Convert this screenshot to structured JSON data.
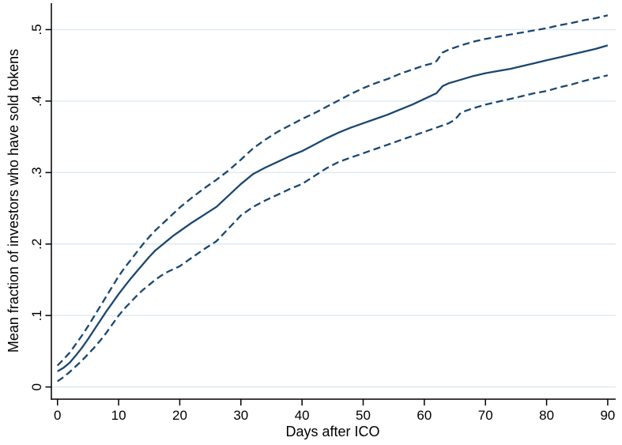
{
  "chart_data": {
    "type": "line",
    "title": "",
    "xlabel": "Days after ICO",
    "ylabel": "Mean fraction of investors who have sold tokens",
    "legend": "none",
    "grid": "horizontal",
    "x_range": [
      -1,
      91.3
    ],
    "y_range": [
      -0.017,
      0.537
    ],
    "x_ticks": [
      {
        "v": 0,
        "label": "0"
      },
      {
        "v": 10,
        "label": "10"
      },
      {
        "v": 20,
        "label": "20"
      },
      {
        "v": 30,
        "label": "30"
      },
      {
        "v": 40,
        "label": "40"
      },
      {
        "v": 50,
        "label": "50"
      },
      {
        "v": 60,
        "label": "60"
      },
      {
        "v": 70,
        "label": "70"
      },
      {
        "v": 80,
        "label": "80"
      },
      {
        "v": 90,
        "label": "90"
      }
    ],
    "y_ticks": [
      {
        "v": 0.0,
        "label": "0"
      },
      {
        "v": 0.1,
        "label": ".1"
      },
      {
        "v": 0.2,
        "label": ".2"
      },
      {
        "v": 0.3,
        "label": ".3"
      },
      {
        "v": 0.4,
        "label": ".4"
      },
      {
        "v": 0.5,
        "label": ".5"
      }
    ],
    "colors": {
      "line": "#1a476f",
      "grid": "#dce9f1",
      "axis": "#000000",
      "background": "#ffffff"
    },
    "series": [
      {
        "name": "mean_fraction_sold",
        "style": "solid",
        "points": [
          [
            0,
            0.022
          ],
          [
            1,
            0.027
          ],
          [
            2,
            0.034
          ],
          [
            3,
            0.044
          ],
          [
            4,
            0.055
          ],
          [
            5,
            0.067
          ],
          [
            6,
            0.08
          ],
          [
            7,
            0.093
          ],
          [
            8,
            0.106
          ],
          [
            9,
            0.118
          ],
          [
            10,
            0.13
          ],
          [
            11,
            0.141
          ],
          [
            12,
            0.152
          ],
          [
            13,
            0.162
          ],
          [
            14,
            0.172
          ],
          [
            15,
            0.182
          ],
          [
            16,
            0.191
          ],
          [
            17,
            0.198
          ],
          [
            18,
            0.205
          ],
          [
            19,
            0.212
          ],
          [
            20,
            0.218
          ],
          [
            22,
            0.23
          ],
          [
            24,
            0.241
          ],
          [
            26,
            0.252
          ],
          [
            28,
            0.268
          ],
          [
            30,
            0.284
          ],
          [
            32,
            0.298
          ],
          [
            34,
            0.307
          ],
          [
            36,
            0.315
          ],
          [
            38,
            0.323
          ],
          [
            40,
            0.33
          ],
          [
            42,
            0.339
          ],
          [
            44,
            0.348
          ],
          [
            46,
            0.356
          ],
          [
            48,
            0.363
          ],
          [
            50,
            0.369
          ],
          [
            52,
            0.375
          ],
          [
            54,
            0.381
          ],
          [
            56,
            0.388
          ],
          [
            58,
            0.395
          ],
          [
            60,
            0.403
          ],
          [
            61,
            0.407
          ],
          [
            62,
            0.411
          ],
          [
            63,
            0.421
          ],
          [
            64,
            0.425
          ],
          [
            66,
            0.43
          ],
          [
            68,
            0.435
          ],
          [
            70,
            0.439
          ],
          [
            72,
            0.442
          ],
          [
            74,
            0.445
          ],
          [
            76,
            0.449
          ],
          [
            78,
            0.453
          ],
          [
            80,
            0.457
          ],
          [
            82,
            0.461
          ],
          [
            84,
            0.465
          ],
          [
            86,
            0.469
          ],
          [
            88,
            0.473
          ],
          [
            90,
            0.478
          ]
        ]
      },
      {
        "name": "ci_upper",
        "style": "dashed",
        "points": [
          [
            0,
            0.03
          ],
          [
            1,
            0.039
          ],
          [
            2,
            0.048
          ],
          [
            3,
            0.06
          ],
          [
            4,
            0.072
          ],
          [
            5,
            0.085
          ],
          [
            6,
            0.099
          ],
          [
            7,
            0.113
          ],
          [
            8,
            0.127
          ],
          [
            9,
            0.141
          ],
          [
            10,
            0.155
          ],
          [
            11,
            0.167
          ],
          [
            12,
            0.178
          ],
          [
            13,
            0.189
          ],
          [
            14,
            0.2
          ],
          [
            15,
            0.21
          ],
          [
            16,
            0.219
          ],
          [
            17,
            0.227
          ],
          [
            18,
            0.235
          ],
          [
            19,
            0.243
          ],
          [
            20,
            0.251
          ],
          [
            22,
            0.265
          ],
          [
            24,
            0.278
          ],
          [
            26,
            0.29
          ],
          [
            28,
            0.303
          ],
          [
            30,
            0.318
          ],
          [
            32,
            0.334
          ],
          [
            34,
            0.346
          ],
          [
            36,
            0.357
          ],
          [
            38,
            0.366
          ],
          [
            40,
            0.375
          ],
          [
            42,
            0.383
          ],
          [
            44,
            0.392
          ],
          [
            46,
            0.401
          ],
          [
            48,
            0.41
          ],
          [
            50,
            0.418
          ],
          [
            52,
            0.425
          ],
          [
            54,
            0.431
          ],
          [
            56,
            0.438
          ],
          [
            58,
            0.444
          ],
          [
            60,
            0.45
          ],
          [
            61,
            0.452
          ],
          [
            62,
            0.456
          ],
          [
            63,
            0.468
          ],
          [
            64,
            0.472
          ],
          [
            66,
            0.478
          ],
          [
            68,
            0.483
          ],
          [
            70,
            0.487
          ],
          [
            72,
            0.49
          ],
          [
            74,
            0.493
          ],
          [
            76,
            0.496
          ],
          [
            78,
            0.499
          ],
          [
            80,
            0.502
          ],
          [
            82,
            0.506
          ],
          [
            84,
            0.509
          ],
          [
            86,
            0.513
          ],
          [
            88,
            0.516
          ],
          [
            90,
            0.52
          ]
        ]
      },
      {
        "name": "ci_lower",
        "style": "dashed",
        "points": [
          [
            0,
            0.008
          ],
          [
            1,
            0.014
          ],
          [
            2,
            0.021
          ],
          [
            3,
            0.029
          ],
          [
            4,
            0.037
          ],
          [
            5,
            0.046
          ],
          [
            6,
            0.055
          ],
          [
            7,
            0.065
          ],
          [
            8,
            0.076
          ],
          [
            9,
            0.088
          ],
          [
            10,
            0.1
          ],
          [
            11,
            0.11
          ],
          [
            12,
            0.119
          ],
          [
            13,
            0.128
          ],
          [
            14,
            0.136
          ],
          [
            15,
            0.143
          ],
          [
            16,
            0.15
          ],
          [
            17,
            0.156
          ],
          [
            18,
            0.161
          ],
          [
            19,
            0.165
          ],
          [
            20,
            0.169
          ],
          [
            22,
            0.181
          ],
          [
            24,
            0.193
          ],
          [
            26,
            0.204
          ],
          [
            28,
            0.222
          ],
          [
            30,
            0.24
          ],
          [
            32,
            0.252
          ],
          [
            34,
            0.261
          ],
          [
            36,
            0.269
          ],
          [
            38,
            0.277
          ],
          [
            40,
            0.284
          ],
          [
            42,
            0.295
          ],
          [
            44,
            0.306
          ],
          [
            46,
            0.315
          ],
          [
            48,
            0.321
          ],
          [
            50,
            0.327
          ],
          [
            52,
            0.333
          ],
          [
            54,
            0.339
          ],
          [
            56,
            0.345
          ],
          [
            58,
            0.351
          ],
          [
            60,
            0.357
          ],
          [
            62,
            0.363
          ],
          [
            64,
            0.369
          ],
          [
            65,
            0.374
          ],
          [
            66,
            0.384
          ],
          [
            68,
            0.39
          ],
          [
            70,
            0.395
          ],
          [
            72,
            0.399
          ],
          [
            74,
            0.403
          ],
          [
            76,
            0.407
          ],
          [
            78,
            0.411
          ],
          [
            80,
            0.414
          ],
          [
            82,
            0.419
          ],
          [
            84,
            0.423
          ],
          [
            86,
            0.428
          ],
          [
            88,
            0.432
          ],
          [
            90,
            0.436
          ]
        ]
      }
    ]
  }
}
